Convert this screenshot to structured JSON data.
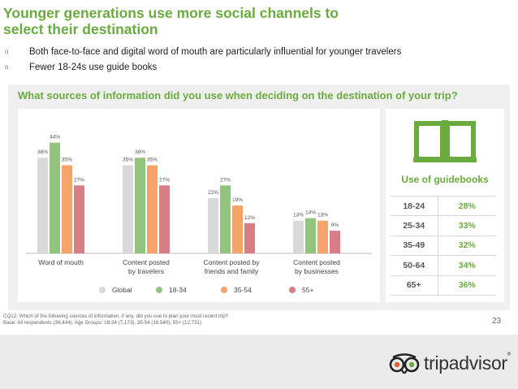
{
  "title": "Younger generations use more social channels to select their destination",
  "bullets": [
    "Both face-to-face and digital word of mouth are particularly influential for younger travelers",
    "Fewer 18-24s use guide books"
  ],
  "bullet_glyph": "o",
  "question": "What sources of information did you use when deciding on the destination of your trip?",
  "colors": {
    "title_green": "#6aab3f",
    "global": "#d9d9d9",
    "18-34": "#93c47d",
    "35-54": "#f4a46b",
    "55+": "#d77d85"
  },
  "chart_data": {
    "type": "bar",
    "categories": [
      "Word of mouth",
      "Content posted by travelers",
      "Content posted by friends and family",
      "Content posted by businesses"
    ],
    "category_lines": [
      [
        "Word of mouth"
      ],
      [
        "Content posted",
        "by travelers"
      ],
      [
        "Content posted by",
        "friends and family"
      ],
      [
        "Content posted",
        "by businesses"
      ]
    ],
    "series": [
      {
        "name": "Global",
        "values": [
          38,
          35,
          22,
          13
        ],
        "labels": [
          "38%",
          "35%",
          "22%",
          "13%"
        ]
      },
      {
        "name": "18-34",
        "values": [
          44,
          38,
          27,
          14
        ],
        "labels": [
          "44%",
          "38%",
          "27%",
          "14%"
        ]
      },
      {
        "name": "35-54",
        "values": [
          35,
          35,
          19,
          13
        ],
        "labels": [
          "35%",
          "35%",
          "19%",
          "13%"
        ]
      },
      {
        "name": "55+",
        "values": [
          27,
          27,
          12,
          9
        ],
        "labels": [
          "27%",
          "27%",
          "12%",
          "9%"
        ]
      }
    ],
    "ylim": [
      0,
      50
    ],
    "grid": false,
    "legend": "bottom"
  },
  "guidebooks": {
    "icon": "book-icon",
    "title": "Use of guidebooks",
    "rows": [
      {
        "age": "18-24",
        "pct": "28%"
      },
      {
        "age": "25-34",
        "pct": "33%"
      },
      {
        "age": "35-49",
        "pct": "32%"
      },
      {
        "age": "50-64",
        "pct": "34%"
      },
      {
        "age": "65+",
        "pct": "36%"
      }
    ]
  },
  "footnote": [
    "CQ12. Which of the following sources of information, if any, did you use to plan your most recent trip?",
    "Base: All respondents (36,444); Age Groups: 18-34 (7,173), 35-54 (16,540), 55+ (12,731)"
  ],
  "page_number": "23",
  "logo": {
    "icon": "owl-eyes-icon",
    "word": "tripadvisor",
    "mark": "®"
  }
}
